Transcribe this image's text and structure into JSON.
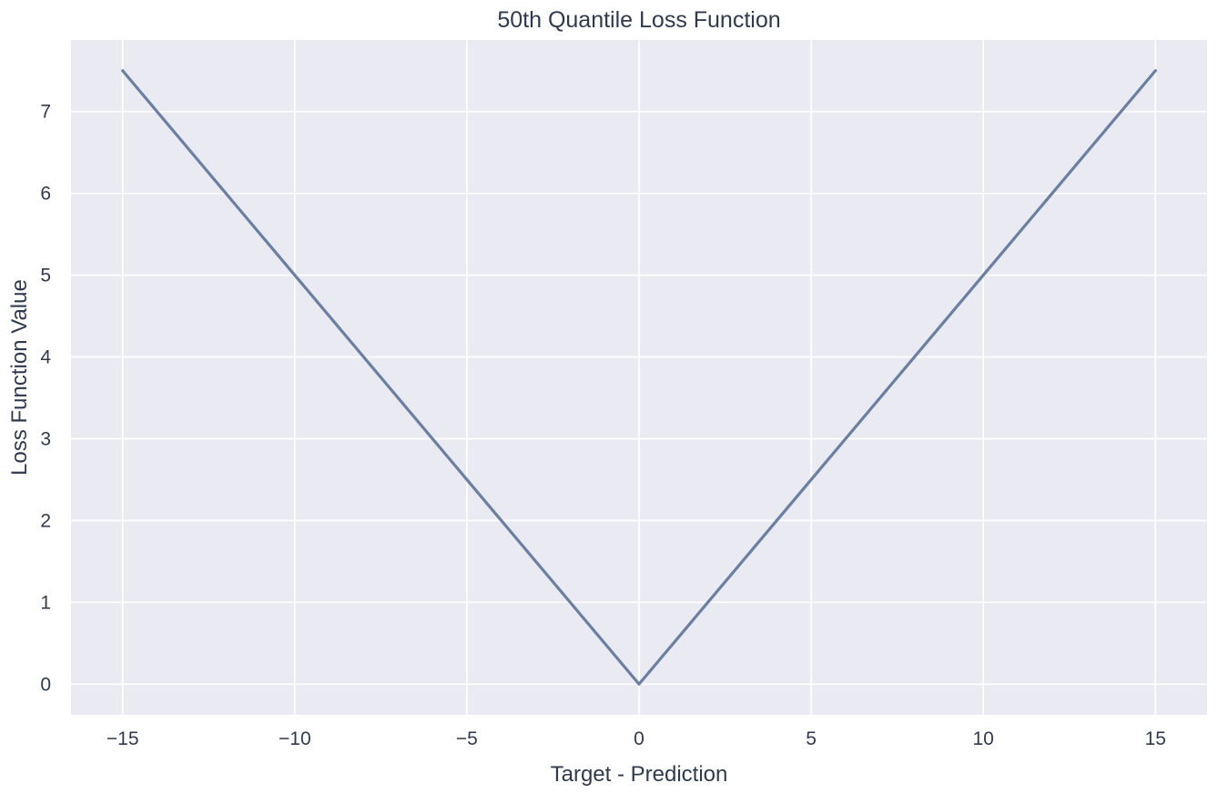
{
  "chart_data": {
    "type": "line",
    "title": "50th Quantile Loss Function",
    "xlabel": "Target - Prediction",
    "ylabel": "Loss Function Value",
    "xlim": [
      -16.5,
      16.5
    ],
    "ylim": [
      -0.375,
      7.875
    ],
    "xticks": [
      -15,
      -10,
      -5,
      0,
      5,
      10,
      15
    ],
    "xtick_labels": [
      "−15",
      "−10",
      "−5",
      "0",
      "5",
      "10",
      "15"
    ],
    "yticks": [
      0,
      1,
      2,
      3,
      4,
      5,
      6,
      7
    ],
    "ytick_labels": [
      "0",
      "1",
      "2",
      "3",
      "4",
      "5",
      "6",
      "7"
    ],
    "grid": true,
    "background_color": "#eaeaf2",
    "grid_color": "#ffffff",
    "series": [
      {
        "color": "#6b7fa3",
        "x": [
          -15,
          -10,
          -5,
          0,
          5,
          10,
          15
        ],
        "y": [
          7.5,
          5,
          2.5,
          0,
          2.5,
          5,
          7.5
        ]
      }
    ]
  }
}
